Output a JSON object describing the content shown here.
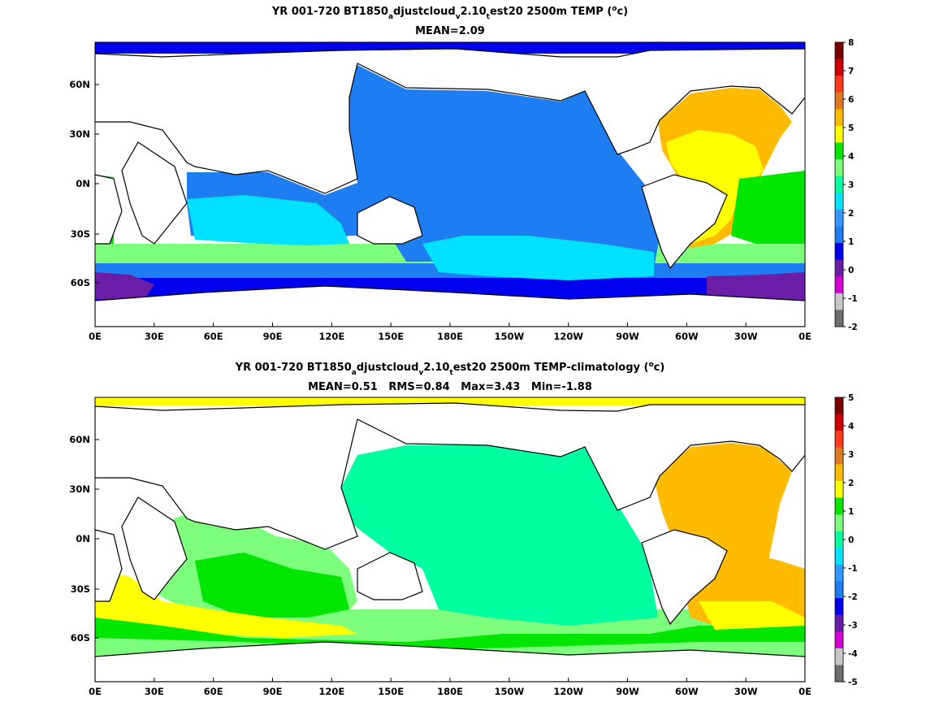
{
  "chart_data": [
    {
      "type": "heatmap",
      "title": {
        "pre": "YR 001-720 BT1850",
        "s1": "a",
        "m1": "djustcloud",
        "s2": "v",
        "m2": "2.10",
        "s3": "t",
        "m3": "est20 2500m TEMP (",
        "sup": "o",
        "post": "c)"
      },
      "subtitle": "MEAN=2.09",
      "x_ticks": [
        "0E",
        "30E",
        "60E",
        "90E",
        "120E",
        "150E",
        "180E",
        "150W",
        "120W",
        "90W",
        "60W",
        "30W",
        "0E"
      ],
      "y_ticks": [
        "60N",
        "30N",
        "0N",
        "30S",
        "60S"
      ],
      "colorbar": {
        "ticks": [
          "8",
          "7",
          "6",
          "5",
          "4",
          "3",
          "2",
          "1",
          "0",
          "-1",
          "-2"
        ],
        "colors": [
          "#7a0000",
          "#cc0000",
          "#ff3b1f",
          "#e07a20",
          "#ffbb00",
          "#ffff00",
          "#00e600",
          "#7dff7d",
          "#00ffa0",
          "#00e0ff",
          "#3399ff",
          "#1e7df0",
          "#0000ee",
          "#6a1ea8",
          "#d400d4",
          "#c8c8c8",
          "#6e6e6e"
        ],
        "values": [
          8,
          7,
          6,
          5,
          4,
          3,
          2,
          1,
          0,
          -1,
          -2
        ]
      },
      "regions": {
        "pacific": 1.5,
        "indian_north": 1.5,
        "indian_south": 2.3,
        "atlantic_north": 4.5,
        "atlantic_south": 3.5,
        "southern_ocean": 0.5,
        "weddell": -0.5,
        "ross": -0.5
      }
    },
    {
      "type": "heatmap",
      "title": {
        "pre": "YR 001-720 BT1850",
        "s1": "a",
        "m1": "djustcloud",
        "s2": "v",
        "m2": "2.10",
        "s3": "t",
        "m3": "est20 2500m TEMP-climatology (",
        "sup": "o",
        "post": "c)"
      },
      "subtitle": "MEAN=0.51   RMS=0.84   Max=3.43   Min=-1.88",
      "x_ticks": [
        "0E",
        "30E",
        "60E",
        "90E",
        "120E",
        "150E",
        "180E",
        "150W",
        "120W",
        "90W",
        "60W",
        "30W",
        "0E"
      ],
      "y_ticks": [
        "60N",
        "30N",
        "0N",
        "30S",
        "60S"
      ],
      "colorbar": {
        "ticks": [
          "5",
          "4",
          "3",
          "2",
          "1",
          "0",
          "-1",
          "-2",
          "-3",
          "-4",
          "-5"
        ],
        "colors": [
          "#7a0000",
          "#cc0000",
          "#ff3b1f",
          "#e07a20",
          "#ffbb00",
          "#ffff00",
          "#00e600",
          "#7dff7d",
          "#00ffa0",
          "#00e0ff",
          "#3399ff",
          "#1e7df0",
          "#0000ee",
          "#6a1ea8",
          "#d400d4",
          "#c8c8c8",
          "#6e6e6e"
        ],
        "values": [
          5,
          4,
          3,
          2,
          1,
          0,
          -1,
          -2,
          -3,
          -4,
          -5
        ]
      },
      "stats": {
        "mean": 0.51,
        "rms": 0.84,
        "max": 3.43,
        "min": -1.88
      },
      "regions": {
        "pacific": 0.2,
        "indian": 0.6,
        "atlantic_north": 1.6,
        "atlantic_south": 1.4,
        "southern_ocean": 0.8,
        "weddell": -0.5
      }
    }
  ]
}
